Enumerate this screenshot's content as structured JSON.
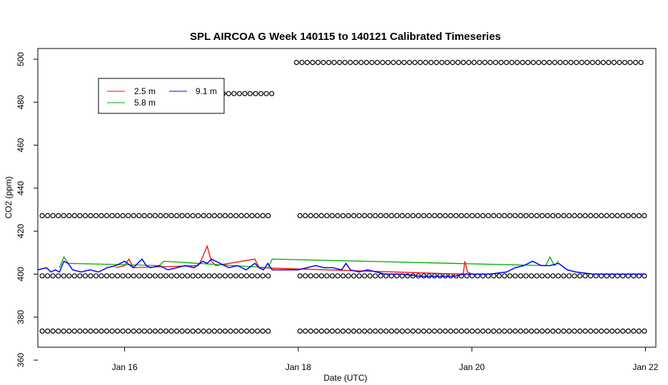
{
  "chart_data": {
    "type": "line",
    "title": "SPL AIRCOA G  Week 140115 to 140121  Calibrated Timeseries",
    "xlabel": "Date (UTC)",
    "ylabel": "CO2 (ppm)",
    "xlim": [
      15.0,
      22.12
    ],
    "ylim": [
      366,
      505
    ],
    "x_ticks": [
      {
        "value": 16,
        "label": "Jan 16"
      },
      {
        "value": 18,
        "label": "Jan 18"
      },
      {
        "value": 20,
        "label": "Jan 20"
      },
      {
        "value": 22,
        "label": "Jan 22"
      }
    ],
    "y_ticks": [
      360,
      380,
      400,
      420,
      440,
      460,
      480,
      500
    ],
    "legend": {
      "placement": "top-left",
      "entries": [
        {
          "name": "2.5 m",
          "color": "#ff0000"
        },
        {
          "name": "5.8 m",
          "color": "#00aa00"
        },
        {
          "name": "9.1 m",
          "color": "#0000ff"
        }
      ]
    },
    "series": [
      {
        "name": "9.1 m",
        "color": "#0000ff",
        "x": [
          15.0,
          15.1,
          15.15,
          15.2,
          15.25,
          15.3,
          15.35,
          15.4,
          15.5,
          15.6,
          15.7,
          15.8,
          15.9,
          16.0,
          16.1,
          16.15,
          16.2,
          16.25,
          16.3,
          16.4,
          16.5,
          16.6,
          16.7,
          16.8,
          16.9,
          16.95,
          17.0,
          17.1,
          17.2,
          17.3,
          17.4,
          17.5,
          17.55,
          17.6,
          17.65,
          17.7,
          17.8,
          17.9,
          18.0,
          18.1,
          18.2,
          18.3,
          18.4,
          18.5,
          18.55,
          18.6,
          18.7,
          18.8,
          18.9,
          19.0,
          19.2,
          19.4,
          19.6,
          19.8,
          19.9,
          20.0,
          20.2,
          20.4,
          20.5,
          20.6,
          20.7,
          20.8,
          20.9,
          21.0,
          21.1,
          21.2,
          21.4,
          21.6,
          21.8,
          22.0
        ],
        "y": [
          402,
          403,
          401,
          402,
          401,
          406,
          405,
          402,
          401,
          402,
          401,
          403,
          404,
          406,
          403,
          405,
          407,
          404,
          403,
          404,
          402,
          403,
          404,
          403,
          406,
          405,
          407,
          405,
          403,
          404,
          402,
          405,
          403,
          402,
          405,
          402,
          402,
          402,
          402,
          403,
          404,
          403,
          403,
          402,
          405,
          402,
          401,
          402,
          401,
          400,
          400,
          399,
          399,
          399,
          400,
          400,
          400,
          401,
          403,
          404,
          406,
          404,
          404,
          405,
          402,
          401,
          400,
          400,
          400,
          400
        ]
      },
      {
        "name": "2.5 m",
        "color": "#ff0000",
        "x": [
          15.9,
          16.0,
          16.05,
          16.1,
          16.85,
          16.9,
          16.95,
          17.0,
          17.05,
          17.5,
          17.55,
          19.9,
          19.92,
          19.95,
          20.0
        ],
        "y": [
          403,
          404,
          407,
          403,
          404,
          408,
          413,
          406,
          404,
          407,
          403,
          400,
          406,
          401,
          400
        ]
      },
      {
        "name": "5.8 m",
        "color": "#00aa00",
        "x": [
          15.25,
          15.3,
          15.35,
          16.4,
          16.45,
          17.65,
          17.7,
          20.85,
          20.9,
          20.95,
          21.0
        ],
        "y": [
          403,
          408,
          405,
          404,
          406,
          403,
          407,
          404,
          408,
          404,
          406
        ]
      }
    ],
    "reference_points": {
      "marker": "open-circle",
      "color": "#000000",
      "rows": [
        {
          "value": 373.5,
          "x_start": 15.05,
          "x_end": 17.7,
          "x_start2": 18.02,
          "x_end2": 22.0
        },
        {
          "value": 399.2,
          "x_start": 15.05,
          "x_end": 17.7,
          "x_start2": 18.02,
          "x_end2": 22.0
        },
        {
          "value": 427.2,
          "x_start": 15.05,
          "x_end": 17.7,
          "x_start2": 18.02,
          "x_end2": 22.0
        },
        {
          "value": 484.0,
          "x_start": 16.95,
          "x_end": 17.7
        },
        {
          "value": 498.5,
          "x_start2": 17.98,
          "x_end2": 22.0
        }
      ]
    }
  }
}
